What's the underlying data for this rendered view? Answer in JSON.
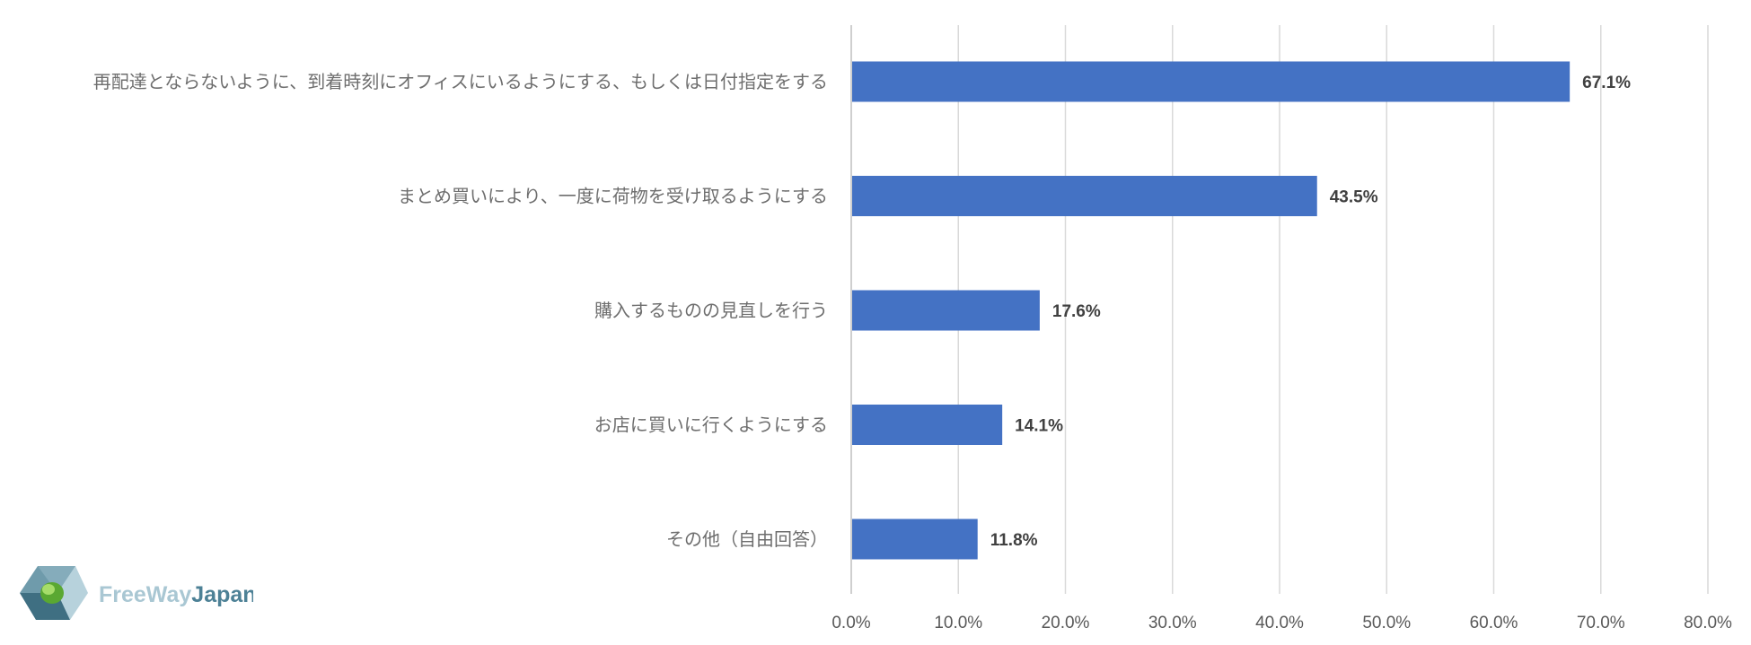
{
  "chart_data": {
    "type": "bar",
    "orientation": "horizontal",
    "categories": [
      "再配達とならないように、到着時刻にオフィスにいるようにする、もしくは日付指定をする",
      "まとめ買いにより、一度に荷物を受け取るようにする",
      "購入するものの見直しを行う",
      "お店に買いに行くようにする",
      "その他（自由回答）"
    ],
    "values": [
      67.1,
      43.5,
      17.6,
      14.1,
      11.8
    ],
    "value_labels": [
      "67.1%",
      "43.5%",
      "17.6%",
      "14.1%",
      "11.8%"
    ],
    "xlim": [
      0,
      80
    ],
    "ticks": [
      0,
      10,
      20,
      30,
      40,
      50,
      60,
      70,
      80
    ],
    "tick_labels": [
      "0.0%",
      "10.0%",
      "20.0%",
      "30.0%",
      "40.0%",
      "50.0%",
      "60.0%",
      "70.0%",
      "80.0%"
    ],
    "title": "",
    "xlabel": "",
    "ylabel": "",
    "grid": true,
    "legend": "none",
    "bar_color": "#4472c4"
  },
  "logo": {
    "text_part1": "FreeWay",
    "text_part2": "Japan",
    "colors": {
      "light": "#a9c7d3",
      "dark": "#4d8196",
      "green": "#7cc242"
    }
  }
}
